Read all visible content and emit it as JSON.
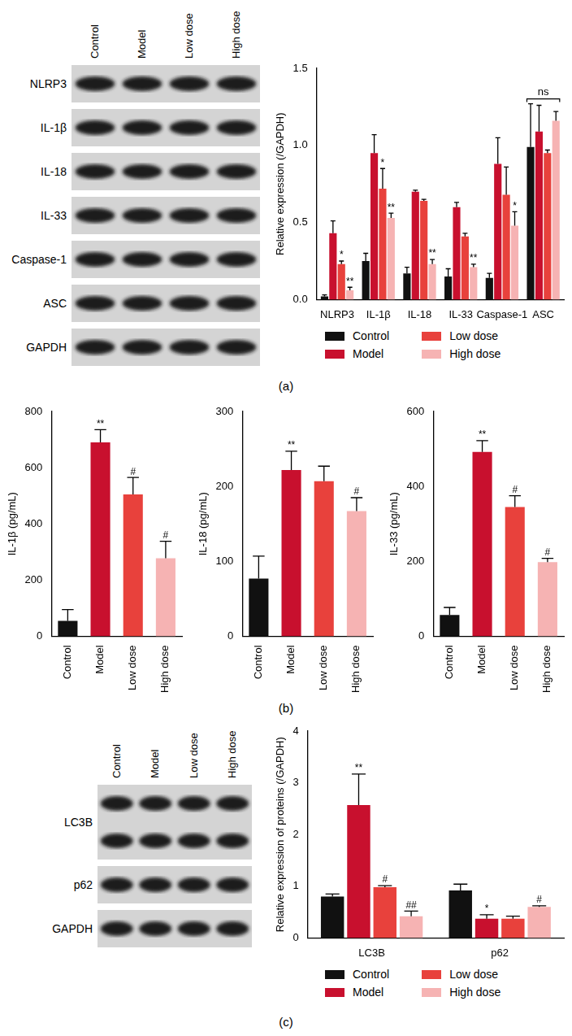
{
  "panel_labels": [
    "(a)",
    "(b)",
    "(c)"
  ],
  "blots": [
    {
      "lanes": [
        "Control",
        "Model",
        "Low dose",
        "High dose"
      ],
      "rows": [
        {
          "label": "NLRP3",
          "bands": 1
        },
        {
          "label": "IL-1β",
          "bands": 1
        },
        {
          "label": "IL-18",
          "bands": 1
        },
        {
          "label": "IL-33",
          "bands": 1
        },
        {
          "label": "Caspase-1",
          "bands": 1
        },
        {
          "label": "ASC",
          "bands": 1
        },
        {
          "label": "GAPDH",
          "bands": 1
        }
      ]
    },
    {
      "lanes": [
        "Control",
        "Model",
        "Low dose",
        "High dose"
      ],
      "rows": [
        {
          "label": "LC3B",
          "bands": 2
        },
        {
          "label": "p62",
          "bands": 1
        },
        {
          "label": "GAPDH",
          "bands": 1
        }
      ]
    }
  ],
  "chart_data": [
    {
      "type": "bar",
      "y_label": "Relative expression (/GAPDH)",
      "categories": [
        "NLRP3",
        "IL-1β",
        "IL-18",
        "IL-33",
        "Caspase-1",
        "ASC"
      ],
      "series": [
        {
          "name": "Control",
          "color": "#111111",
          "values": [
            0.02,
            0.25,
            0.17,
            0.15,
            0.14,
            0.99
          ],
          "errors": [
            0.01,
            0.05,
            0.04,
            0.05,
            0.03,
            0.28
          ],
          "annotations": [
            null,
            null,
            null,
            null,
            null,
            null
          ]
        },
        {
          "name": "Model",
          "color": "#c8102e",
          "values": [
            0.43,
            0.95,
            0.7,
            0.6,
            0.88,
            1.09
          ],
          "errors": [
            0.08,
            0.12,
            0.01,
            0.03,
            0.17,
            0.17
          ],
          "annotations": [
            null,
            null,
            null,
            null,
            null,
            null
          ]
        },
        {
          "name": "Low dose",
          "color": "#e8413c",
          "values": [
            0.23,
            0.72,
            0.64,
            0.41,
            0.68,
            0.95
          ],
          "errors": [
            0.02,
            0.13,
            0.01,
            0.02,
            0.18,
            0.02
          ],
          "annotations": [
            "*",
            "*",
            null,
            null,
            null,
            null
          ]
        },
        {
          "name": "High dose",
          "color": "#f6b3b3",
          "values": [
            0.06,
            0.53,
            0.23,
            0.21,
            0.48,
            1.16
          ],
          "errors": [
            0.02,
            0.03,
            0.03,
            0.02,
            0.09,
            0.06
          ],
          "annotations": [
            "**",
            "**",
            "**",
            "**",
            "*",
            null
          ]
        }
      ],
      "group_annotations": [
        {
          "category": "ASC",
          "text": "ns"
        }
      ],
      "ylim": [
        0,
        1.5
      ],
      "yticks": [
        {
          "value": 0,
          "label": "0.0"
        },
        {
          "value": 0.5,
          "label": "0.5"
        },
        {
          "value": 1,
          "label": "1.0"
        },
        {
          "value": 1.5,
          "label": "1.5"
        }
      ],
      "grid": false,
      "legend": "bottom"
    },
    {
      "type": "bar",
      "y_label": "IL-1β (pg/mL)",
      "categories": [
        "Control",
        "Model",
        "Low dose",
        "High dose"
      ],
      "values": [
        55,
        690,
        505,
        278
      ],
      "errors": [
        40,
        45,
        60,
        60
      ],
      "annotations": [
        null,
        "**",
        "#",
        "#"
      ],
      "colors": [
        "#111111",
        "#c8102e",
        "#e8413c",
        "#f6b3b3"
      ],
      "ylim": [
        0,
        800
      ],
      "yticks": [
        0,
        200,
        400,
        600,
        800
      ],
      "grid": false,
      "legend": false
    },
    {
      "type": "bar",
      "y_label": "IL-18 (pg/mL)",
      "categories": [
        "Control",
        "Model",
        "Low dose",
        "High dose"
      ],
      "values": [
        77,
        222,
        207,
        167
      ],
      "errors": [
        30,
        25,
        20,
        18
      ],
      "annotations": [
        null,
        "**",
        null,
        "#"
      ],
      "colors": [
        "#111111",
        "#c8102e",
        "#e8413c",
        "#f6b3b3"
      ],
      "ylim": [
        0,
        300
      ],
      "yticks": [
        0,
        100,
        200,
        300
      ],
      "grid": false,
      "legend": false
    },
    {
      "type": "bar",
      "y_label": "IL-33 (pg/mL)",
      "categories": [
        "Control",
        "Model",
        "Low dose",
        "High dose"
      ],
      "values": [
        57,
        492,
        345,
        198
      ],
      "errors": [
        20,
        30,
        30,
        10
      ],
      "annotations": [
        null,
        "**",
        "#",
        "#"
      ],
      "colors": [
        "#111111",
        "#c8102e",
        "#e8413c",
        "#f6b3b3"
      ],
      "ylim": [
        0,
        600
      ],
      "yticks": [
        0,
        200,
        400,
        600
      ],
      "grid": false,
      "legend": false
    },
    {
      "type": "bar",
      "y_label": "Relative expression of proteins (/GAPDH)",
      "categories": [
        "LC3B",
        "p62"
      ],
      "series": [
        {
          "name": "Control",
          "color": "#111111",
          "values": [
            0.8,
            0.92
          ],
          "errors": [
            0.05,
            0.12
          ],
          "annotations": [
            null,
            null
          ]
        },
        {
          "name": "Model",
          "color": "#c8102e",
          "values": [
            2.57,
            0.37
          ],
          "errors": [
            0.6,
            0.08
          ],
          "annotations": [
            "**",
            "*"
          ]
        },
        {
          "name": "Low dose",
          "color": "#e8413c",
          "values": [
            0.98,
            0.37
          ],
          "errors": [
            0.03,
            0.05
          ],
          "annotations": [
            "#",
            null
          ]
        },
        {
          "name": "High dose",
          "color": "#f6b3b3",
          "values": [
            0.42,
            0.6
          ],
          "errors": [
            0.1,
            0.02
          ],
          "annotations": [
            "##",
            "#"
          ]
        }
      ],
      "ylim": [
        0,
        4
      ],
      "yticks": [
        0,
        1,
        2,
        3,
        4
      ],
      "grid": false,
      "legend": "bottom"
    }
  ]
}
